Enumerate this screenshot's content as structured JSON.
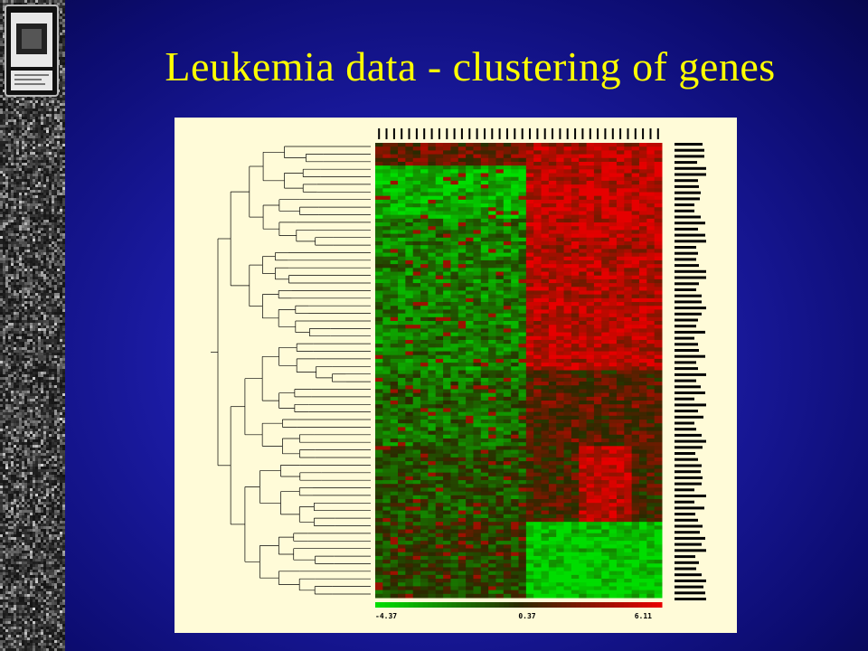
{
  "slide": {
    "title": "Leukemia data - clustering of genes"
  },
  "colors": {
    "background": "#1c1ca6",
    "title": "#ffff00",
    "panel": "#fffbd8",
    "heat_low": "#00dd00",
    "heat_mid": "#2a2a00",
    "heat_high": "#e60000"
  },
  "heatmap": {
    "colorbar": {
      "min": "-4.37",
      "mid": "0.37",
      "max": "6.11"
    }
  }
}
